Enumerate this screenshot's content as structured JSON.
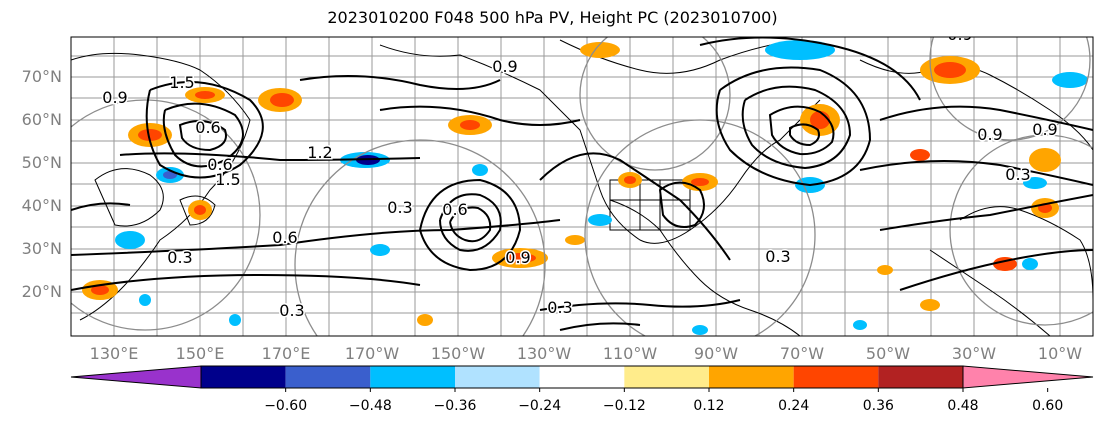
{
  "title": "2023010200 F048 500 hPa PV, Height PC (2023010700)",
  "map": {
    "lat_ticks": [
      "70°N",
      "60°N",
      "50°N",
      "40°N",
      "30°N",
      "20°N"
    ],
    "lon_ticks": [
      "130°E",
      "150°E",
      "170°E",
      "170°W",
      "150°W",
      "130°W",
      "110°W",
      "90°W",
      "70°W",
      "50°W",
      "30°W",
      "10°W"
    ],
    "contour_labels": [
      {
        "text": "0.9"
      },
      {
        "text": "1.5"
      },
      {
        "text": "0.6"
      },
      {
        "text": "1.2"
      },
      {
        "text": "1.5"
      },
      {
        "text": "0.9"
      },
      {
        "text": "0.3"
      },
      {
        "text": "0.6"
      },
      {
        "text": "0.3"
      },
      {
        "text": "0.9"
      },
      {
        "text": "0.3"
      },
      {
        "text": "0.6"
      },
      {
        "text": "0.3"
      },
      {
        "text": "0.6"
      },
      {
        "text": "0.3"
      },
      {
        "text": "0.9"
      },
      {
        "text": "0.9"
      },
      {
        "text": "0.3"
      },
      {
        "text": "0.9"
      }
    ]
  },
  "colorbar": {
    "ticks": [
      "−0.60",
      "−0.48",
      "−0.36",
      "−0.24",
      "−0.12",
      "0.12",
      "0.24",
      "0.36",
      "0.48",
      "0.60"
    ],
    "colors": [
      "#9932cc",
      "#00008b",
      "#3a5fcd",
      "#00bfff",
      "#b0e2ff",
      "#ffffff",
      "#ffec8b",
      "#ffa500",
      "#ff4500",
      "#b22222",
      "#ff82ab"
    ]
  }
}
